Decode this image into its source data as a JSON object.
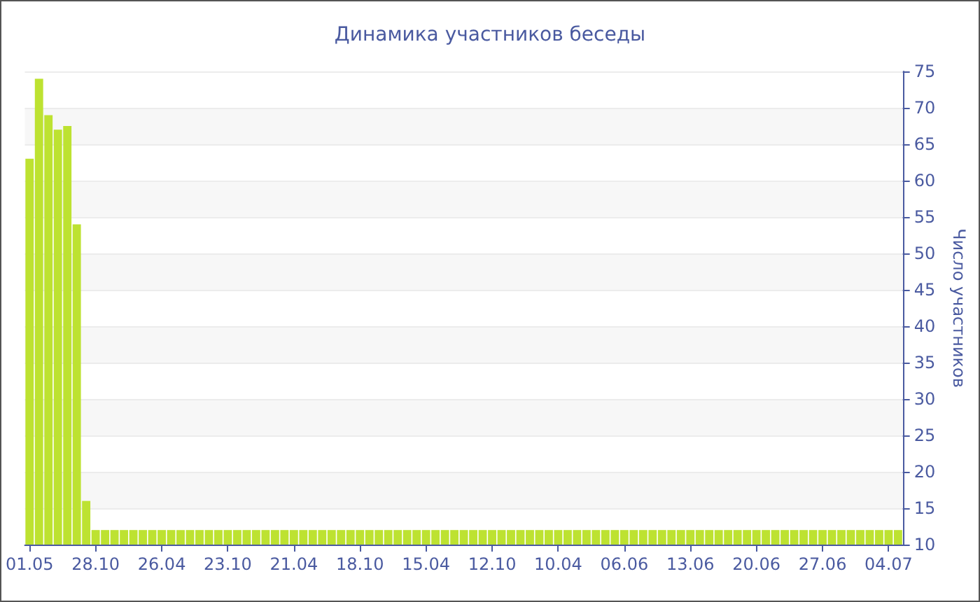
{
  "chart_data": {
    "type": "bar",
    "title": "Динамика участников беседы",
    "ylabel": "Число участников",
    "categories": [
      "01.05",
      null,
      null,
      null,
      null,
      null,
      null,
      "28.10",
      null,
      null,
      null,
      null,
      null,
      null,
      "26.04",
      null,
      null,
      null,
      null,
      null,
      null,
      "23.10",
      null,
      null,
      null,
      null,
      null,
      null,
      "21.04",
      null,
      null,
      null,
      null,
      null,
      null,
      "18.10",
      null,
      null,
      null,
      null,
      null,
      null,
      "15.04",
      null,
      null,
      null,
      null,
      null,
      null,
      "12.10",
      null,
      null,
      null,
      null,
      null,
      null,
      "10.04",
      null,
      null,
      null,
      null,
      null,
      null,
      "06.06",
      null,
      null,
      null,
      null,
      null,
      null,
      "13.06",
      null,
      null,
      null,
      null,
      null,
      null,
      "20.06",
      null,
      null,
      null,
      null,
      null,
      null,
      "27.06",
      null,
      null,
      null,
      null,
      null,
      null,
      "04.07",
      null
    ],
    "values": [
      63,
      74,
      69,
      67,
      67.5,
      54,
      16,
      12,
      12,
      12,
      12,
      12,
      12,
      12,
      12,
      12,
      12,
      12,
      12,
      12,
      12,
      12,
      12,
      12,
      12,
      12,
      12,
      12,
      12,
      12,
      12,
      12,
      12,
      12,
      12,
      12,
      12,
      12,
      12,
      12,
      12,
      12,
      12,
      12,
      12,
      12,
      12,
      12,
      12,
      12,
      12,
      12,
      12,
      12,
      12,
      12,
      12,
      12,
      12,
      12,
      12,
      12,
      12,
      12,
      12,
      12,
      12,
      12,
      12,
      12,
      12,
      12,
      12,
      12,
      12,
      12,
      12,
      12,
      12,
      12,
      12,
      12,
      12,
      12,
      12,
      12,
      12,
      12,
      12,
      12,
      12,
      12,
      12
    ],
    "color": "#bde231",
    "ylim": [
      10,
      75
    ],
    "yticks": [
      10,
      15,
      20,
      25,
      30,
      35,
      40,
      45,
      50,
      55,
      60,
      65,
      70,
      75
    ],
    "grid": "y"
  }
}
